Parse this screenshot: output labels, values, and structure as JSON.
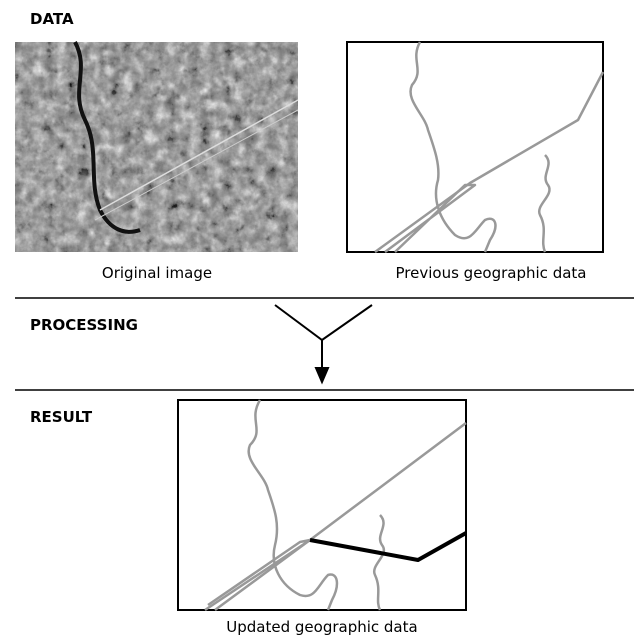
{
  "sections": [
    {
      "label": "DATA"
    },
    {
      "label": "PROCESSING"
    },
    {
      "label": "RESULT"
    }
  ],
  "captions": {
    "original": "Original image",
    "previous": "Previous geographic data",
    "updated": "Updated geographic data"
  }
}
